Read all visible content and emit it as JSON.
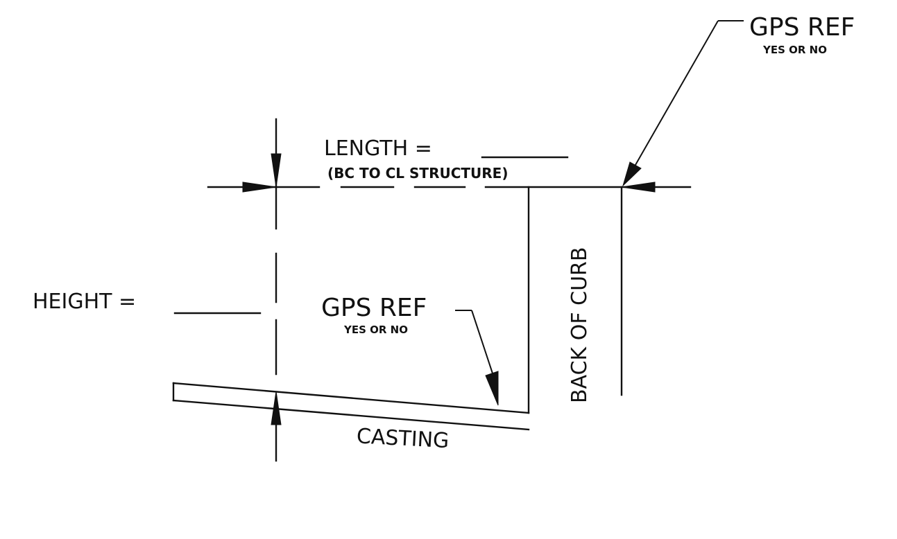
{
  "labels": {
    "gps_ref_top": "GPS REF",
    "gps_ref_top_sub": "YES OR NO",
    "length": "LENGTH =",
    "length_sub": "(BC TO CL STRUCTURE)",
    "height": "HEIGHT =",
    "gps_ref_mid": "GPS REF",
    "gps_ref_mid_sub": "YES OR NO",
    "back_of_curb": "BACK OF CURB",
    "casting": "CASTING"
  }
}
